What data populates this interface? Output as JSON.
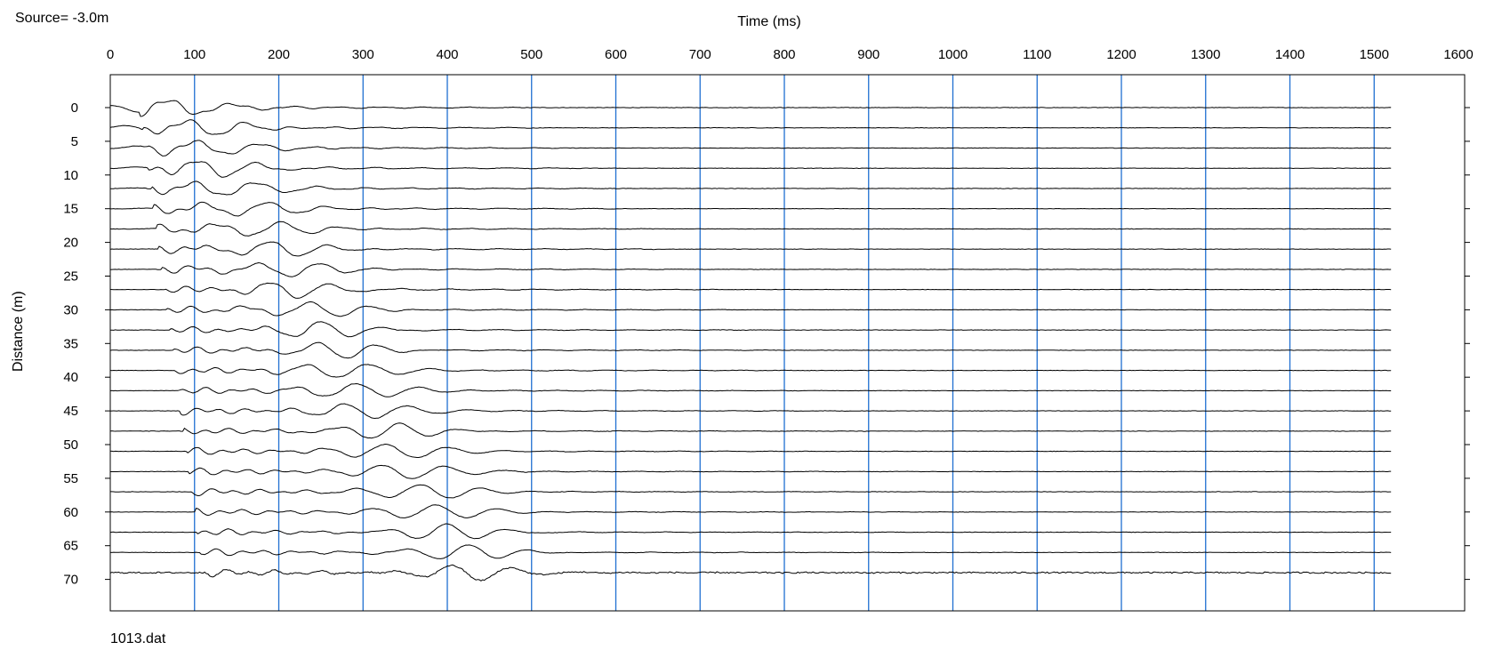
{
  "header": {
    "source_label": "Source= -3.0m",
    "file_label": "1013.dat"
  },
  "chart_data": {
    "type": "line",
    "title": "",
    "xlabel": "Time (ms)",
    "ylabel": "Distance (m)",
    "xlim": [
      0,
      1600
    ],
    "ylim": [
      -3,
      76
    ],
    "x_ticks": [
      0,
      100,
      200,
      300,
      400,
      500,
      600,
      700,
      800,
      900,
      1000,
      1100,
      1200,
      1300,
      1400,
      1500,
      1600
    ],
    "y_ticks": [
      0,
      5,
      10,
      15,
      20,
      25,
      30,
      35,
      40,
      45,
      50,
      55,
      60,
      65,
      70
    ],
    "grid": {
      "vertical": true,
      "horizontal": false
    },
    "grid_color": "#1f6fd1",
    "trace_color": "#000000",
    "record_length_ms": 1520,
    "trace_offsets_m": [
      0,
      3,
      6,
      9,
      12,
      15,
      18,
      21,
      24,
      27,
      30,
      33,
      36,
      39,
      42,
      45,
      48,
      51,
      54,
      57,
      60,
      63,
      66,
      69
    ]
  }
}
